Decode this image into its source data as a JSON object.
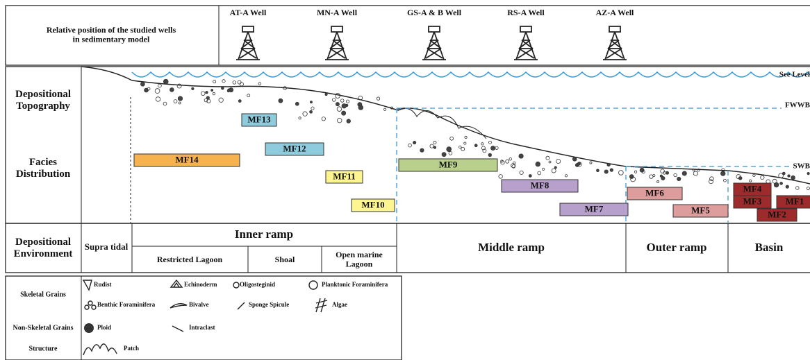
{
  "header": {
    "title": [
      "Relative position of the studied wells",
      "in sedimentary model"
    ],
    "wells": [
      "AT-A Well",
      "MN-A Well",
      "GS-A & B Well",
      "RS-A Well",
      "AZ-A Well"
    ]
  },
  "row_labels": {
    "topography": [
      "Depositional",
      "Topography"
    ],
    "facies": [
      "Facies",
      "Distribution"
    ],
    "environment": [
      "Depositional",
      "Environment"
    ]
  },
  "levels": [
    "See Level",
    "FWWB",
    "SWB"
  ],
  "facies": [
    "MF14",
    "MF13",
    "MF12",
    "MF11",
    "MF10",
    "MF9",
    "MF8",
    "MF7",
    "MF6",
    "MF5",
    "MF4",
    "MF3",
    "MF1",
    "MF2"
  ],
  "environment": {
    "supra": "Supra tidal",
    "inner": "Inner ramp",
    "inner_sub": [
      "Restricted Lagoon",
      "Shoal",
      [
        "Open marine",
        "Lagoon"
      ]
    ],
    "middle": "Middle ramp",
    "outer": "Outer ramp",
    "basin": "Basin"
  },
  "legend": {
    "rows": [
      "Skeletal Grains",
      "Non-Skeletal Grains",
      "Structure"
    ],
    "items": [
      "Rudist",
      "Echinoderm",
      "Oligosteginid",
      "Planktonic Foraminifera",
      "Benthic Foraminifera",
      "Bivalve",
      "Sponge Spicule",
      "Algae",
      "Ploid",
      "Intraclast",
      "Patch"
    ]
  }
}
